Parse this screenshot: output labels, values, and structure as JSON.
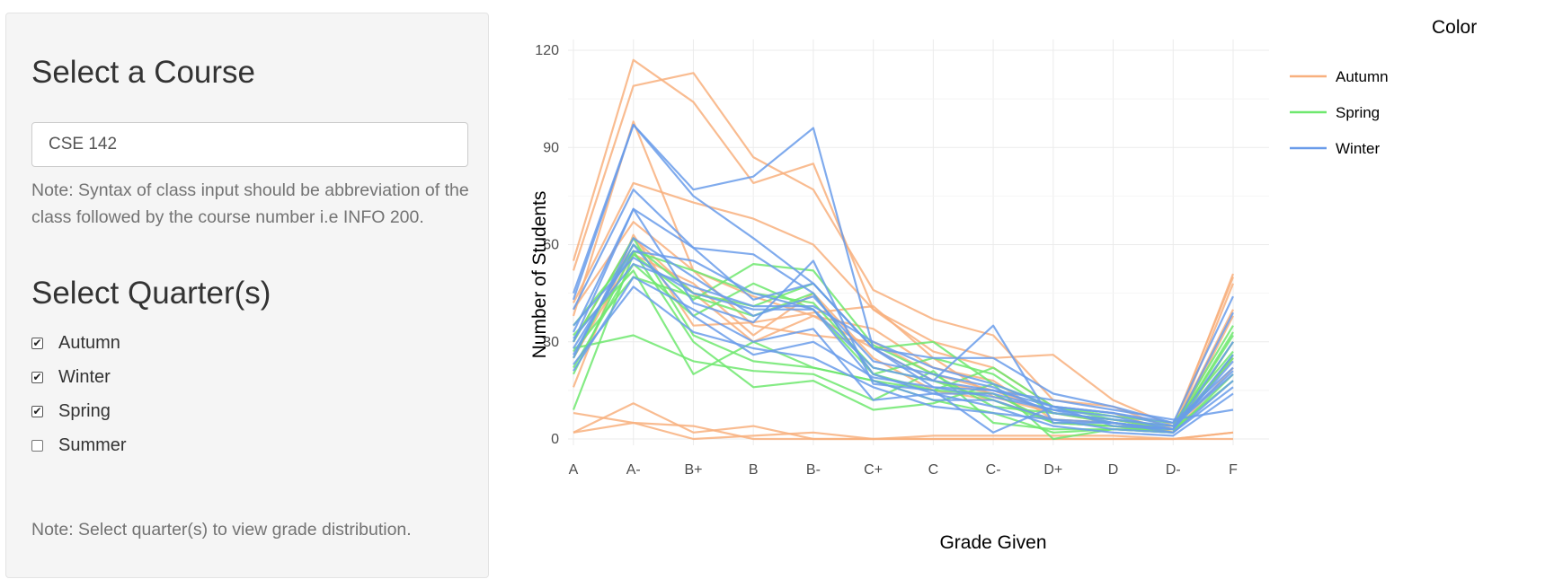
{
  "sidebar": {
    "course_heading": "Select a Course",
    "course_input_value": "CSE 142",
    "course_note": "Note: Syntax of class input should be abbreviation of the class followed by the course number i.e INFO 200.",
    "quarter_heading": "Select Quarter(s)",
    "quarters": [
      {
        "label": "Autumn",
        "checked": true
      },
      {
        "label": "Winter",
        "checked": true
      },
      {
        "label": "Spring",
        "checked": true
      },
      {
        "label": "Summer",
        "checked": false
      }
    ],
    "quarter_note": "Note: Select quarter(s) to view grade distribution."
  },
  "colors": {
    "Autumn": "#f8b07e",
    "Spring": "#6ee86e",
    "Winter": "#6a9cea"
  },
  "chart_data": {
    "type": "line",
    "xlabel": "Grade Given",
    "ylabel": "Number of Students",
    "categories": [
      "A",
      "A-",
      "B+",
      "B",
      "B-",
      "C+",
      "C",
      "C-",
      "D+",
      "D",
      "D-",
      "F"
    ],
    "ylim": [
      -5,
      125
    ],
    "yticks": [
      0,
      30,
      60,
      90,
      120
    ],
    "grid": true,
    "legend": {
      "title": "Color",
      "position": "right",
      "entries": [
        "Autumn",
        "Spring",
        "Winter"
      ]
    },
    "series": [
      {
        "group": "Autumn",
        "values": [
          55,
          117,
          104,
          79,
          85,
          40,
          30,
          25,
          26,
          12,
          4,
          50
        ]
      },
      {
        "group": "Autumn",
        "values": [
          52,
          109,
          113,
          87,
          77,
          46,
          37,
          32,
          12,
          10,
          3,
          51
        ]
      },
      {
        "group": "Autumn",
        "values": [
          42,
          79,
          73,
          68,
          60,
          40,
          27,
          22,
          10,
          8,
          2,
          48
        ]
      },
      {
        "group": "Autumn",
        "values": [
          40,
          67,
          52,
          35,
          32,
          30,
          20,
          15,
          8,
          6,
          3,
          40
        ]
      },
      {
        "group": "Autumn",
        "values": [
          38,
          98,
          52,
          44,
          38,
          34,
          22,
          18,
          6,
          5,
          2,
          38
        ]
      },
      {
        "group": "Autumn",
        "values": [
          30,
          62,
          45,
          30,
          38,
          28,
          18,
          14,
          5,
          4,
          2,
          30
        ]
      },
      {
        "group": "Autumn",
        "values": [
          16,
          63,
          35,
          36,
          39,
          41,
          25,
          13,
          8,
          5,
          3,
          25
        ]
      },
      {
        "group": "Autumn",
        "values": [
          8,
          5,
          4,
          0,
          0,
          0,
          1,
          1,
          1,
          1,
          0,
          2
        ]
      },
      {
        "group": "Autumn",
        "values": [
          2,
          11,
          2,
          4,
          0,
          0,
          0,
          0,
          0,
          0,
          0,
          2
        ]
      },
      {
        "group": "Autumn",
        "values": [
          2,
          5,
          0,
          1,
          2,
          0,
          0,
          0,
          0,
          0,
          0,
          0
        ]
      },
      {
        "group": "Autumn",
        "values": [
          25,
          57,
          48,
          32,
          45,
          25,
          15,
          12,
          6,
          5,
          2,
          22
        ]
      },
      {
        "group": "Spring",
        "values": [
          9,
          57,
          43,
          54,
          52,
          29,
          20,
          10,
          8,
          5,
          3,
          32
        ]
      },
      {
        "group": "Spring",
        "values": [
          28,
          32,
          24,
          21,
          20,
          12,
          21,
          5,
          3,
          3,
          3,
          25
        ]
      },
      {
        "group": "Spring",
        "values": [
          32,
          52,
          20,
          30,
          22,
          18,
          12,
          8,
          2,
          3,
          2,
          26
        ]
      },
      {
        "group": "Spring",
        "values": [
          30,
          62,
          32,
          24,
          22,
          18,
          15,
          14,
          5,
          4,
          2,
          30
        ]
      },
      {
        "group": "Spring",
        "values": [
          35,
          58,
          30,
          16,
          18,
          9,
          11,
          17,
          10,
          7,
          5,
          27
        ]
      },
      {
        "group": "Spring",
        "values": [
          25,
          60,
          45,
          41,
          48,
          28,
          30,
          17,
          0,
          3,
          2,
          20
        ]
      },
      {
        "group": "Spring",
        "values": [
          22,
          54,
          38,
          48,
          40,
          20,
          15,
          22,
          10,
          6,
          4,
          35
        ]
      },
      {
        "group": "Spring",
        "values": [
          20,
          58,
          52,
          45,
          42,
          22,
          18,
          12,
          5,
          4,
          3,
          33
        ]
      },
      {
        "group": "Spring",
        "values": [
          27,
          50,
          44,
          38,
          45,
          20,
          25,
          20,
          8,
          6,
          3,
          18
        ]
      },
      {
        "group": "Winter",
        "values": [
          45,
          97,
          77,
          81,
          96,
          28,
          25,
          25,
          14,
          10,
          5,
          44
        ]
      },
      {
        "group": "Winter",
        "values": [
          43,
          97,
          75,
          62,
          48,
          28,
          18,
          35,
          5,
          5,
          3,
          39
        ]
      },
      {
        "group": "Winter",
        "values": [
          40,
          77,
          59,
          43,
          48,
          28,
          16,
          13,
          9,
          7,
          3,
          30
        ]
      },
      {
        "group": "Winter",
        "values": [
          33,
          71,
          59,
          57,
          45,
          20,
          14,
          14,
          9,
          5,
          3,
          26
        ]
      },
      {
        "group": "Winter",
        "values": [
          30,
          71,
          42,
          36,
          55,
          17,
          15,
          2,
          10,
          4,
          3,
          24
        ]
      },
      {
        "group": "Winter",
        "values": [
          28,
          58,
          55,
          45,
          40,
          22,
          18,
          15,
          10,
          8,
          5,
          22
        ]
      },
      {
        "group": "Winter",
        "values": [
          25,
          62,
          50,
          38,
          44,
          24,
          20,
          16,
          8,
          6,
          4,
          20
        ]
      },
      {
        "group": "Winter",
        "values": [
          23,
          47,
          33,
          28,
          25,
          16,
          10,
          8,
          6,
          3,
          2,
          16
        ]
      },
      {
        "group": "Winter",
        "values": [
          21,
          50,
          40,
          30,
          34,
          12,
          14,
          10,
          4,
          2,
          1,
          14
        ]
      },
      {
        "group": "Winter",
        "values": [
          35,
          56,
          45,
          40,
          40,
          18,
          12,
          12,
          6,
          5,
          2,
          18
        ]
      },
      {
        "group": "Winter",
        "values": [
          26,
          60,
          38,
          26,
          30,
          19,
          16,
          15,
          12,
          9,
          6,
          9
        ]
      },
      {
        "group": "Winter",
        "values": [
          31,
          54,
          47,
          41,
          41,
          30,
          22,
          17,
          10,
          8,
          4,
          21
        ]
      }
    ]
  }
}
